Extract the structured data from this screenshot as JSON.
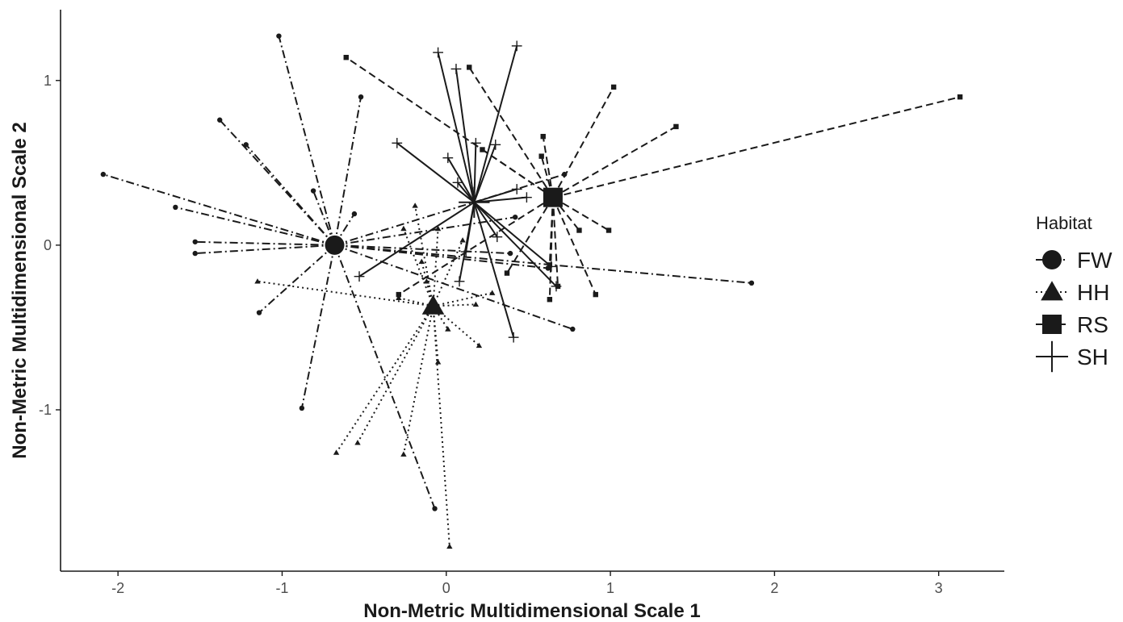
{
  "chart_data": {
    "type": "scatter",
    "subtype": "nmds-spider-plot",
    "title": "",
    "xlabel": "Non-Metric Multidimensional Scale 1",
    "ylabel": "Non-Metric Multidimensional Scale 2",
    "xlim": [
      -2.35,
      3.4
    ],
    "ylim": [
      -1.98,
      1.43
    ],
    "x_ticks": [
      -2,
      -1,
      0,
      1,
      2,
      3
    ],
    "y_ticks": [
      -1,
      0,
      1
    ],
    "x_tick_labels": [
      "-2",
      "-1",
      "0",
      "1",
      "2",
      "3"
    ],
    "y_tick_labels": [
      "-1",
      "0",
      "1"
    ],
    "grid": false,
    "legend": {
      "title": "Habitat",
      "position": "right"
    },
    "series": [
      {
        "name": "FW",
        "shape": "circle",
        "line_style": "dashdot",
        "centroid": [
          -0.68,
          0.0
        ],
        "points": [
          [
            -1.02,
            1.27
          ],
          [
            -0.52,
            0.9
          ],
          [
            -1.38,
            0.76
          ],
          [
            -1.22,
            0.61
          ],
          [
            -2.09,
            0.43
          ],
          [
            -0.81,
            0.33
          ],
          [
            -1.65,
            0.23
          ],
          [
            -0.56,
            0.19
          ],
          [
            -1.53,
            0.02
          ],
          [
            -1.53,
            -0.05
          ],
          [
            -1.14,
            -0.41
          ],
          [
            -0.88,
            -0.99
          ],
          [
            -0.07,
            -1.6
          ],
          [
            0.77,
            -0.51
          ],
          [
            1.86,
            -0.23
          ],
          [
            0.62,
            -0.14
          ],
          [
            0.39,
            -0.05
          ],
          [
            0.42,
            0.17
          ],
          [
            0.72,
            0.43
          ]
        ]
      },
      {
        "name": "HH",
        "shape": "triangle",
        "line_style": "dotted",
        "centroid": [
          -0.08,
          -0.37
        ],
        "points": [
          [
            -1.15,
            -0.22
          ],
          [
            -0.67,
            -1.26
          ],
          [
            -0.54,
            -1.2
          ],
          [
            -0.26,
            -1.27
          ],
          [
            -0.05,
            -0.71
          ],
          [
            0.02,
            -1.83
          ],
          [
            0.2,
            -0.61
          ],
          [
            0.01,
            -0.51
          ],
          [
            0.28,
            -0.29
          ],
          [
            0.18,
            -0.36
          ],
          [
            -0.29,
            -0.32
          ],
          [
            -0.19,
            0.24
          ],
          [
            -0.26,
            0.1
          ],
          [
            -0.12,
            -0.22
          ],
          [
            -0.15,
            -0.1
          ],
          [
            0.1,
            0.03
          ],
          [
            -0.05,
            0.1
          ]
        ]
      },
      {
        "name": "RS",
        "shape": "square",
        "line_style": "dashed",
        "centroid": [
          0.65,
          0.29
        ],
        "points": [
          [
            -0.61,
            1.14
          ],
          [
            0.14,
            1.08
          ],
          [
            1.02,
            0.96
          ],
          [
            3.13,
            0.9
          ],
          [
            1.4,
            0.72
          ],
          [
            0.59,
            0.66
          ],
          [
            0.58,
            0.54
          ],
          [
            0.22,
            0.58
          ],
          [
            0.99,
            0.09
          ],
          [
            0.81,
            0.09
          ],
          [
            0.91,
            -0.3
          ],
          [
            0.63,
            -0.33
          ],
          [
            0.37,
            -0.17
          ],
          [
            -0.29,
            -0.3
          ],
          [
            0.63,
            -0.12
          ],
          [
            0.68,
            -0.25
          ]
        ]
      },
      {
        "name": "SH",
        "shape": "cross",
        "line_style": "solid",
        "centroid": [
          0.17,
          0.26
        ],
        "points": [
          [
            -0.05,
            1.17
          ],
          [
            0.43,
            1.21
          ],
          [
            0.06,
            1.07
          ],
          [
            0.18,
            0.62
          ],
          [
            0.3,
            0.61
          ],
          [
            -0.3,
            0.62
          ],
          [
            0.01,
            0.53
          ],
          [
            0.07,
            0.38
          ],
          [
            0.43,
            0.34
          ],
          [
            0.49,
            0.29
          ],
          [
            0.31,
            0.05
          ],
          [
            0.12,
            -0.04
          ],
          [
            -0.53,
            -0.19
          ],
          [
            0.41,
            -0.56
          ],
          [
            0.67,
            -0.25
          ],
          [
            0.64,
            -0.13
          ],
          [
            0.08,
            -0.22
          ]
        ]
      }
    ]
  }
}
